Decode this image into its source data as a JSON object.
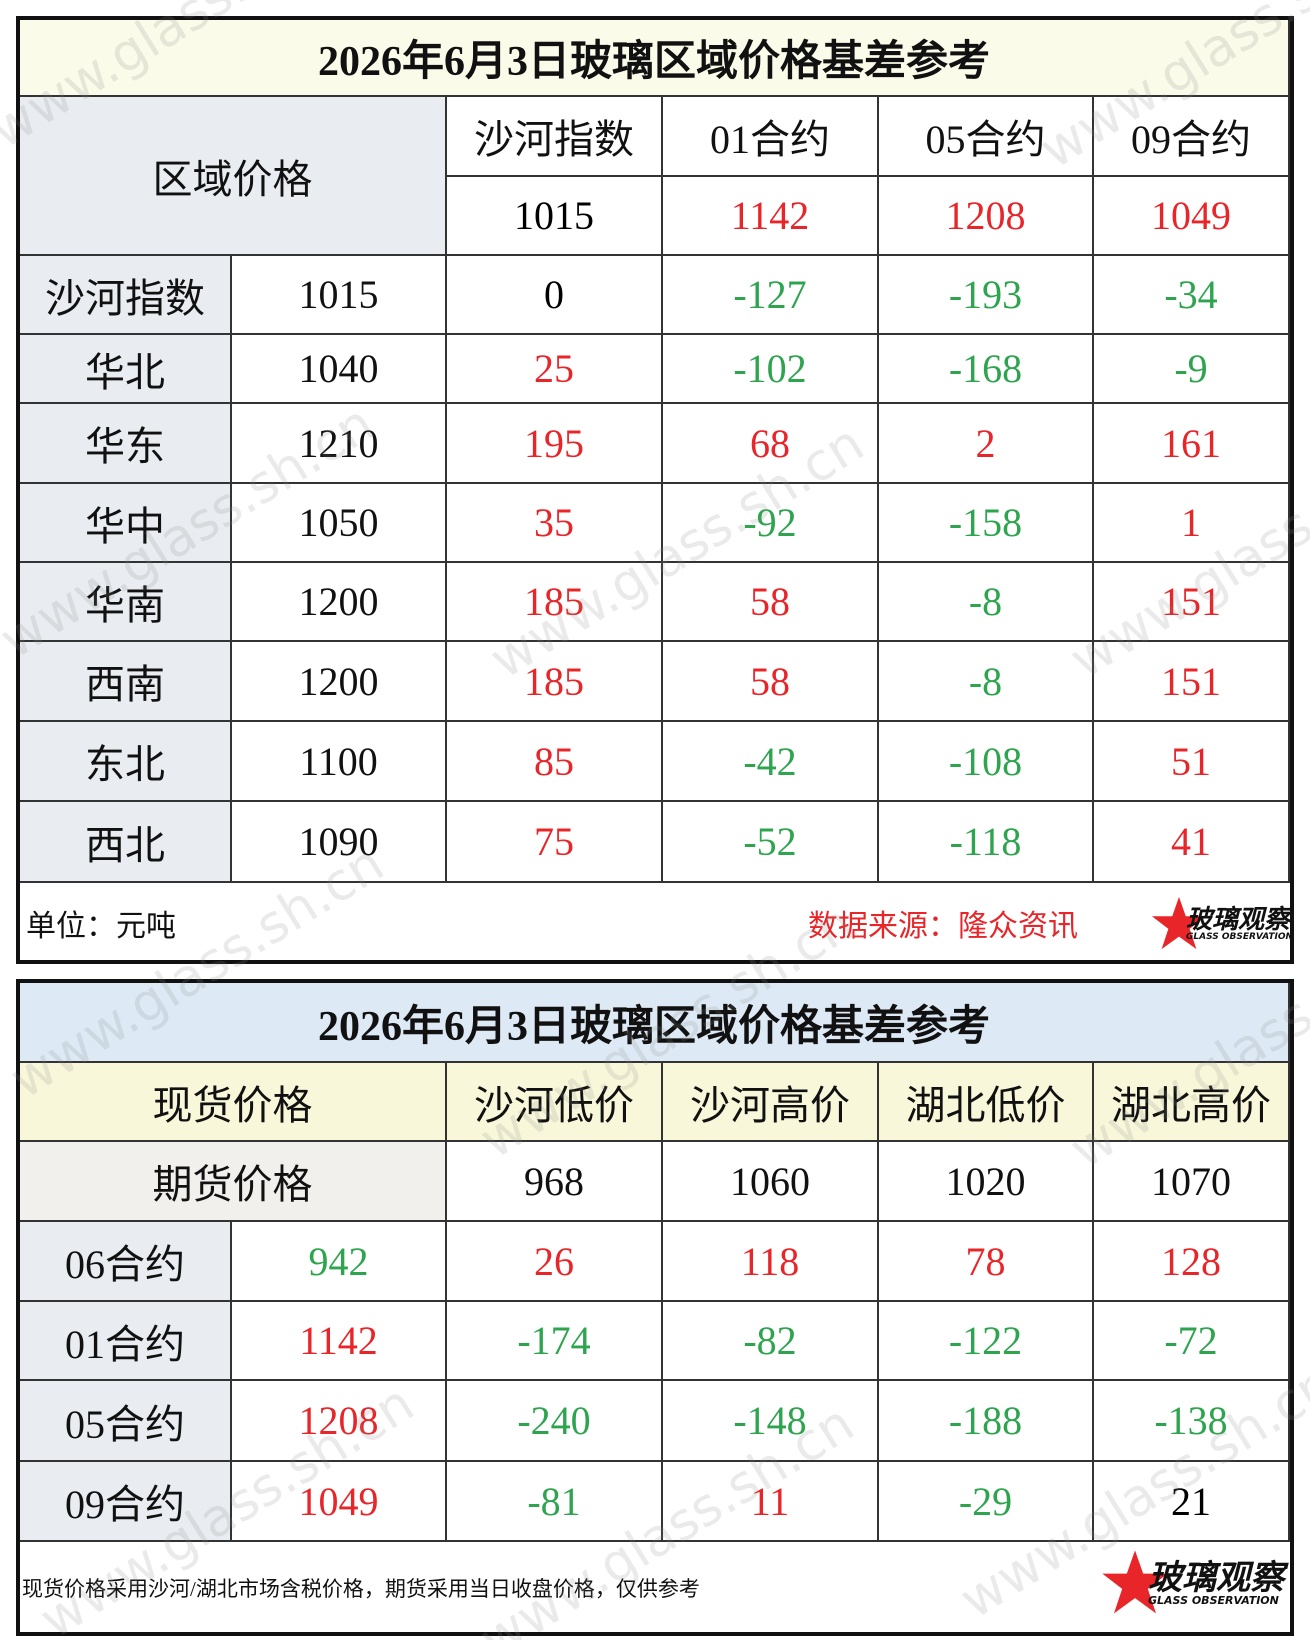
{
  "watermark": "www.glass.sh.cn",
  "table1": {
    "title": "2026年6月3日玻璃区域价格基差参考",
    "corner": "区域价格",
    "headers": [
      "沙河指数",
      "01合约",
      "05合约",
      "09合约"
    ],
    "header_values": [
      1015,
      1142,
      1208,
      1049
    ],
    "header_colors": [
      "#000000",
      "#e8262a",
      "#e8262a",
      "#e8262a"
    ],
    "rows": [
      {
        "label": "沙河指数",
        "price": 1015,
        "diffs": [
          0,
          -127,
          -193,
          -34
        ],
        "colors": [
          "#000000",
          "#2ea44f",
          "#2ea44f",
          "#2ea44f"
        ]
      },
      {
        "label": "华北",
        "price": 1040,
        "diffs": [
          25,
          -102,
          -168,
          -9
        ],
        "colors": [
          "#e8262a",
          "#2ea44f",
          "#2ea44f",
          "#2ea44f"
        ]
      },
      {
        "label": "华东",
        "price": 1210,
        "diffs": [
          195,
          68,
          2,
          161
        ],
        "colors": [
          "#e8262a",
          "#e8262a",
          "#e8262a",
          "#e8262a"
        ]
      },
      {
        "label": "华中",
        "price": 1050,
        "diffs": [
          35,
          -92,
          -158,
          1
        ],
        "colors": [
          "#e8262a",
          "#2ea44f",
          "#2ea44f",
          "#e8262a"
        ]
      },
      {
        "label": "华南",
        "price": 1200,
        "diffs": [
          185,
          58,
          -8,
          151
        ],
        "colors": [
          "#e8262a",
          "#e8262a",
          "#2ea44f",
          "#e8262a"
        ]
      },
      {
        "label": "西南",
        "price": 1200,
        "diffs": [
          185,
          58,
          -8,
          151
        ],
        "colors": [
          "#e8262a",
          "#e8262a",
          "#2ea44f",
          "#e8262a"
        ]
      },
      {
        "label": "东北",
        "price": 1100,
        "diffs": [
          85,
          -42,
          -108,
          51
        ],
        "colors": [
          "#e8262a",
          "#2ea44f",
          "#2ea44f",
          "#e8262a"
        ]
      },
      {
        "label": "西北",
        "price": 1090,
        "diffs": [
          75,
          -52,
          -118,
          41
        ],
        "colors": [
          "#e8262a",
          "#2ea44f",
          "#2ea44f",
          "#e8262a"
        ]
      }
    ],
    "unit": "单位：元吨",
    "source": "数据来源：隆众资讯",
    "logo": "玻璃观察",
    "logo_sub": "GLASS OBSERVATION"
  },
  "table2": {
    "title": "2026年6月3日玻璃区域价格基差参考",
    "corner": "现货价格",
    "headers": [
      "沙河低价",
      "沙河高价",
      "湖北低价",
      "湖北高价"
    ],
    "sub_corner": "期货价格",
    "header_values": [
      968,
      1060,
      1020,
      1070
    ],
    "rows": [
      {
        "label": "06合约",
        "price": 942,
        "price_color": "#2ea44f",
        "diffs": [
          26,
          118,
          78,
          128
        ],
        "colors": [
          "#e8262a",
          "#e8262a",
          "#e8262a",
          "#e8262a"
        ]
      },
      {
        "label": "01合约",
        "price": 1142,
        "price_color": "#e8262a",
        "diffs": [
          -174,
          -82,
          -122,
          -72
        ],
        "colors": [
          "#2ea44f",
          "#2ea44f",
          "#2ea44f",
          "#2ea44f"
        ]
      },
      {
        "label": "05合约",
        "price": 1208,
        "price_color": "#e8262a",
        "diffs": [
          -240,
          -148,
          -188,
          -138
        ],
        "colors": [
          "#2ea44f",
          "#2ea44f",
          "#2ea44f",
          "#2ea44f"
        ]
      },
      {
        "label": "09合约",
        "price": 1049,
        "price_color": "#e8262a",
        "diffs": [
          -81,
          11,
          -29,
          21
        ],
        "colors": [
          "#2ea44f",
          "#e8262a",
          "#2ea44f",
          "#000000"
        ]
      }
    ],
    "note": "现货价格采用沙河/湖北市场含税价格，期货采用当日收盘价格，仅供参考",
    "logo": "玻璃观察",
    "logo_sub": "GLASS OBSERVATION"
  }
}
